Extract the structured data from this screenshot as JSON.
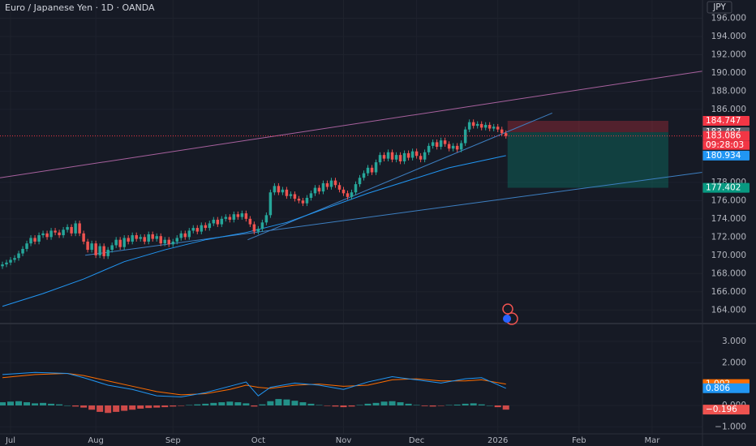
{
  "header": {
    "title": "Euro / Japanese Yen · 1D · OANDA",
    "currency": "JPY"
  },
  "chart_data": {
    "type": "candlestick",
    "xlim": [
      -0.6,
      172.4
    ],
    "xticks": [
      {
        "value": 2,
        "label": "Jul"
      },
      {
        "value": 23,
        "label": "Aug"
      },
      {
        "value": 42,
        "label": "Sep"
      },
      {
        "value": 63,
        "label": "Oct"
      },
      {
        "value": 84,
        "label": "Nov"
      },
      {
        "value": 102,
        "label": "Dec"
      },
      {
        "value": 122,
        "label": "2026"
      },
      {
        "value": 142,
        "label": "Feb"
      },
      {
        "value": 160,
        "label": "Mar"
      }
    ],
    "ylim": [
      162.6,
      198.0
    ],
    "yticks": [
      {
        "value": 164,
        "label": "164.000"
      },
      {
        "value": 166,
        "label": "166.000"
      },
      {
        "value": 168,
        "label": "168.000"
      },
      {
        "value": 170,
        "label": "170.000"
      },
      {
        "value": 172,
        "label": "172.000"
      },
      {
        "value": 174,
        "label": "174.000"
      },
      {
        "value": 176,
        "label": "176.000"
      },
      {
        "value": 178,
        "label": "178.000"
      },
      {
        "value": 186,
        "label": "186.000"
      },
      {
        "value": 188,
        "label": "188.000"
      },
      {
        "value": 190,
        "label": "190.000"
      },
      {
        "value": 192,
        "label": "192.000"
      },
      {
        "value": 194,
        "label": "194.000"
      },
      {
        "value": 196,
        "label": "196.000"
      }
    ],
    "grid": true,
    "colors": {
      "up": "#26a69a",
      "down": "#ef5350"
    },
    "candles": [
      [
        168.8,
        169.3,
        168.5,
        169.0
      ],
      [
        169.0,
        169.5,
        168.7,
        169.2
      ],
      [
        169.2,
        169.8,
        168.9,
        169.5
      ],
      [
        169.5,
        170.0,
        169.2,
        169.7
      ],
      [
        169.7,
        170.5,
        169.4,
        170.2
      ],
      [
        170.2,
        171.0,
        169.9,
        170.7
      ],
      [
        170.7,
        171.6,
        170.4,
        171.3
      ],
      [
        171.3,
        172.2,
        171.0,
        171.9
      ],
      [
        171.9,
        172.2,
        171.2,
        171.5
      ],
      [
        171.5,
        172.5,
        171.2,
        172.2
      ],
      [
        172.2,
        172.7,
        171.9,
        172.4
      ],
      [
        172.4,
        172.7,
        171.7,
        172.0
      ],
      [
        172.0,
        173.0,
        171.7,
        172.7
      ],
      [
        172.7,
        173.0,
        172.2,
        172.5
      ],
      [
        172.5,
        172.8,
        171.9,
        172.2
      ],
      [
        172.2,
        173.1,
        171.9,
        172.8
      ],
      [
        172.8,
        173.4,
        172.5,
        173.1
      ],
      [
        173.1,
        173.4,
        172.1,
        172.4
      ],
      [
        172.4,
        173.8,
        172.1,
        173.5
      ],
      [
        173.5,
        173.8,
        172.1,
        172.4
      ],
      [
        172.4,
        172.7,
        171.2,
        171.5
      ],
      [
        171.5,
        171.8,
        170.3,
        170.6
      ],
      [
        170.6,
        171.6,
        170.3,
        171.3
      ],
      [
        171.3,
        171.6,
        169.7,
        170.0
      ],
      [
        170.0,
        171.3,
        169.7,
        171.0
      ],
      [
        171.0,
        171.3,
        169.6,
        169.9
      ],
      [
        169.9,
        170.9,
        169.6,
        170.6
      ],
      [
        170.6,
        171.4,
        170.3,
        171.1
      ],
      [
        171.1,
        172.0,
        170.8,
        171.7
      ],
      [
        171.7,
        172.0,
        170.6,
        170.9
      ],
      [
        170.9,
        172.2,
        170.6,
        171.9
      ],
      [
        171.9,
        172.2,
        171.2,
        171.5
      ],
      [
        171.5,
        172.5,
        171.2,
        172.2
      ],
      [
        172.2,
        172.5,
        171.5,
        171.8
      ],
      [
        171.8,
        172.3,
        171.5,
        172.0
      ],
      [
        172.0,
        172.3,
        171.2,
        171.5
      ],
      [
        171.5,
        172.6,
        171.2,
        172.3
      ],
      [
        172.3,
        172.6,
        171.5,
        171.8
      ],
      [
        171.8,
        172.4,
        171.5,
        172.1
      ],
      [
        172.1,
        172.4,
        171.0,
        171.3
      ],
      [
        171.3,
        172.0,
        171.0,
        171.7
      ],
      [
        171.7,
        172.0,
        170.9,
        171.2
      ],
      [
        171.2,
        171.8,
        170.9,
        171.5
      ],
      [
        171.5,
        172.2,
        171.2,
        171.9
      ],
      [
        171.9,
        172.7,
        171.6,
        172.4
      ],
      [
        172.4,
        172.7,
        171.7,
        172.0
      ],
      [
        172.0,
        173.0,
        171.7,
        172.7
      ],
      [
        172.7,
        173.3,
        172.4,
        173.0
      ],
      [
        173.0,
        173.3,
        172.3,
        172.6
      ],
      [
        172.6,
        173.6,
        172.3,
        173.3
      ],
      [
        173.3,
        173.6,
        172.7,
        173.0
      ],
      [
        173.0,
        173.8,
        172.7,
        173.5
      ],
      [
        173.5,
        174.2,
        173.2,
        173.9
      ],
      [
        173.9,
        174.2,
        173.1,
        173.4
      ],
      [
        173.4,
        174.3,
        173.1,
        174.0
      ],
      [
        174.0,
        174.5,
        173.7,
        174.2
      ],
      [
        174.2,
        174.5,
        173.6,
        173.9
      ],
      [
        173.9,
        174.8,
        173.6,
        174.5
      ],
      [
        174.5,
        174.8,
        173.9,
        174.2
      ],
      [
        174.2,
        174.9,
        173.9,
        174.6
      ],
      [
        174.6,
        174.9,
        173.7,
        174.0
      ],
      [
        174.0,
        174.3,
        173.1,
        173.4
      ],
      [
        173.4,
        173.7,
        172.3,
        172.6
      ],
      [
        172.6,
        173.2,
        172.3,
        172.9
      ],
      [
        172.9,
        173.9,
        172.6,
        173.6
      ],
      [
        173.6,
        174.7,
        173.3,
        174.4
      ],
      [
        174.4,
        177.2,
        174.1,
        176.9
      ],
      [
        176.9,
        177.9,
        176.6,
        177.6
      ],
      [
        177.6,
        177.9,
        176.6,
        176.9
      ],
      [
        176.9,
        177.5,
        176.6,
        177.2
      ],
      [
        177.2,
        177.5,
        176.2,
        176.5
      ],
      [
        176.5,
        177.0,
        176.2,
        176.7
      ],
      [
        176.7,
        177.0,
        175.9,
        176.2
      ],
      [
        176.2,
        176.5,
        175.7,
        176.0
      ],
      [
        176.0,
        176.3,
        175.4,
        175.7
      ],
      [
        175.7,
        176.6,
        175.4,
        176.3
      ],
      [
        176.3,
        177.1,
        176.0,
        176.8
      ],
      [
        176.8,
        177.7,
        176.5,
        177.4
      ],
      [
        177.4,
        177.7,
        176.7,
        177.0
      ],
      [
        177.0,
        178.2,
        176.7,
        177.9
      ],
      [
        177.9,
        178.2,
        177.2,
        177.5
      ],
      [
        177.5,
        178.5,
        177.2,
        178.2
      ],
      [
        178.2,
        178.5,
        177.4,
        177.7
      ],
      [
        177.7,
        178.0,
        176.9,
        177.2
      ],
      [
        177.2,
        177.5,
        176.5,
        176.8
      ],
      [
        176.8,
        177.1,
        176.1,
        176.4
      ],
      [
        176.4,
        177.2,
        176.1,
        176.9
      ],
      [
        176.9,
        178.1,
        176.6,
        177.8
      ],
      [
        177.8,
        178.8,
        177.5,
        178.5
      ],
      [
        178.5,
        179.3,
        178.2,
        179.0
      ],
      [
        179.0,
        179.9,
        178.7,
        179.6
      ],
      [
        179.6,
        179.9,
        178.8,
        179.1
      ],
      [
        179.1,
        180.5,
        178.8,
        180.2
      ],
      [
        180.2,
        181.3,
        179.9,
        181.0
      ],
      [
        181.0,
        181.3,
        180.3,
        180.6
      ],
      [
        180.6,
        181.6,
        180.3,
        181.3
      ],
      [
        181.3,
        181.6,
        180.2,
        180.5
      ],
      [
        180.5,
        181.3,
        180.2,
        181.0
      ],
      [
        181.0,
        181.3,
        180.0,
        180.3
      ],
      [
        180.3,
        181.5,
        180.0,
        181.2
      ],
      [
        181.2,
        181.5,
        180.4,
        180.7
      ],
      [
        180.7,
        181.7,
        180.4,
        181.4
      ],
      [
        181.4,
        181.7,
        180.6,
        180.9
      ],
      [
        180.9,
        181.2,
        180.2,
        180.5
      ],
      [
        180.5,
        181.6,
        180.2,
        181.3
      ],
      [
        181.3,
        182.3,
        181.0,
        182.0
      ],
      [
        182.0,
        182.7,
        181.7,
        182.4
      ],
      [
        182.4,
        182.7,
        181.6,
        181.9
      ],
      [
        181.9,
        182.9,
        181.6,
        182.6
      ],
      [
        182.6,
        182.9,
        181.9,
        182.2
      ],
      [
        182.2,
        182.5,
        181.4,
        181.7
      ],
      [
        181.7,
        182.3,
        181.4,
        182.0
      ],
      [
        182.0,
        182.3,
        181.3,
        181.6
      ],
      [
        181.6,
        182.6,
        181.3,
        182.3
      ],
      [
        182.3,
        184.1,
        182.0,
        183.8
      ],
      [
        183.8,
        184.9,
        183.5,
        184.6
      ],
      [
        184.6,
        184.9,
        183.9,
        184.2
      ],
      [
        184.2,
        184.7,
        183.9,
        184.4
      ],
      [
        184.4,
        184.7,
        183.7,
        184.0
      ],
      [
        184.0,
        184.6,
        183.7,
        184.3
      ],
      [
        184.3,
        184.6,
        183.6,
        183.9
      ],
      [
        183.9,
        184.4,
        183.6,
        184.1
      ],
      [
        184.1,
        184.4,
        183.5,
        183.8
      ],
      [
        183.8,
        184.1,
        183.1,
        183.4
      ],
      [
        183.4,
        183.7,
        182.8,
        183.086
      ]
    ],
    "last_price_color": "#f23645",
    "countdown": "09:28:03",
    "ma": {
      "color": "#2196f3",
      "x": [
        0,
        10,
        20,
        30,
        40,
        50,
        60,
        70,
        80,
        90,
        100,
        110,
        124
      ],
      "values": [
        164.4,
        165.8,
        167.4,
        169.3,
        170.6,
        171.7,
        172.5,
        173.6,
        175.2,
        176.8,
        178.2,
        179.6,
        180.934
      ]
    },
    "trendlines": [
      {
        "color": "#a8619e",
        "x": [
          -0.6,
          172.4
        ],
        "values": [
          178.5,
          190.2
        ]
      },
      {
        "color": "#3d7fc1",
        "x": [
          20.4,
          172.4
        ],
        "values": [
          170.0,
          179.1
        ]
      },
      {
        "color": "#3d7fc1",
        "x": [
          60.4,
          135.4
        ],
        "values": [
          171.7,
          185.6
        ]
      }
    ],
    "position": {
      "x": [
        124.4,
        164
      ],
      "entry": 183.497,
      "stop": 184.747,
      "target": 177.402,
      "stop_color": "#f23645",
      "entry_color": "#5d606b",
      "target_color": "#089981"
    }
  },
  "macd": {
    "ylim": [
      -1.33,
      3.8
    ],
    "yticks": [
      {
        "value": 3,
        "label": "3.000"
      },
      {
        "value": 2,
        "label": "2.000"
      },
      {
        "value": 0,
        "label": "0.000"
      },
      {
        "value": -1,
        "label": "−1.000"
      }
    ],
    "macd": {
      "color": "#2196f3",
      "x": [
        0,
        8,
        16,
        20,
        26,
        32,
        38,
        44,
        50,
        56,
        60,
        63,
        66,
        72,
        78,
        84,
        90,
        96,
        102,
        108,
        114,
        118,
        124
      ],
      "values": [
        1.45,
        1.55,
        1.5,
        1.3,
        0.95,
        0.75,
        0.45,
        0.4,
        0.6,
        0.9,
        1.1,
        0.45,
        0.85,
        1.05,
        0.95,
        0.75,
        1.1,
        1.35,
        1.2,
        1.05,
        1.25,
        1.3,
        0.806
      ]
    },
    "signal": {
      "color": "#ff6d00",
      "x": [
        0,
        8,
        16,
        20,
        26,
        32,
        38,
        44,
        50,
        56,
        60,
        63,
        66,
        72,
        78,
        84,
        90,
        96,
        102,
        108,
        114,
        118,
        124
      ],
      "values": [
        1.3,
        1.45,
        1.5,
        1.4,
        1.15,
        0.9,
        0.65,
        0.5,
        0.55,
        0.75,
        0.95,
        0.85,
        0.8,
        0.95,
        1.0,
        0.9,
        0.95,
        1.2,
        1.25,
        1.15,
        1.15,
        1.2,
        1.002
      ]
    },
    "histogram": {
      "up_color": "#26a69a",
      "down_color": "#ef5350",
      "x": [
        0,
        2,
        4,
        6,
        8,
        10,
        12,
        14,
        16,
        18,
        20,
        22,
        24,
        26,
        28,
        30,
        32,
        34,
        36,
        38,
        40,
        42,
        44,
        46,
        48,
        50,
        52,
        54,
        56,
        58,
        60,
        62,
        64,
        66,
        68,
        70,
        72,
        74,
        76,
        78,
        80,
        82,
        84,
        86,
        88,
        90,
        92,
        94,
        96,
        98,
        100,
        102,
        104,
        106,
        108,
        110,
        112,
        114,
        116,
        118,
        120,
        122,
        124
      ],
      "values": [
        0.15,
        0.18,
        0.2,
        0.15,
        0.1,
        0.12,
        0.08,
        0.05,
        0.0,
        -0.05,
        -0.1,
        -0.2,
        -0.3,
        -0.35,
        -0.3,
        -0.25,
        -0.2,
        -0.15,
        -0.12,
        -0.1,
        -0.08,
        -0.05,
        -0.02,
        0.02,
        0.05,
        0.08,
        0.12,
        0.15,
        0.18,
        0.15,
        0.1,
        -0.05,
        0.05,
        0.2,
        0.3,
        0.28,
        0.22,
        0.15,
        0.08,
        0.02,
        -0.02,
        -0.05,
        -0.08,
        -0.05,
        0.02,
        0.08,
        0.12,
        0.18,
        0.2,
        0.15,
        0.08,
        0.02,
        -0.03,
        -0.05,
        -0.02,
        0.02,
        0.04,
        0.08,
        0.1,
        0.05,
        0.0,
        -0.08,
        -0.196
      ],
      "value_labels": {
        "62": "−0.196"
      }
    }
  }
}
